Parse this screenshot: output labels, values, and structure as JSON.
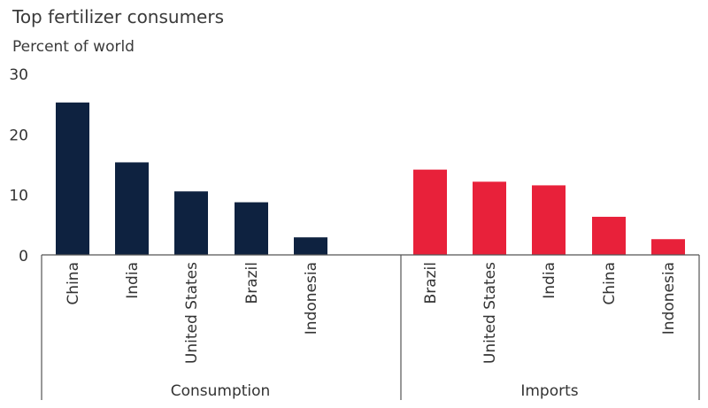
{
  "chart_data": {
    "type": "bar",
    "title": "Top fertilizer consumers",
    "ylabel": "Percent of world",
    "ylim": [
      0,
      30
    ],
    "yticks": [
      0,
      10,
      20,
      30
    ],
    "grid": false,
    "groups": [
      {
        "name": "Consumption",
        "color": "#0e2240",
        "categories": [
          "China",
          "India",
          "United States",
          "Brazil",
          "Indonesia"
        ],
        "values": [
          25.2,
          15.3,
          10.5,
          8.7,
          2.9
        ]
      },
      {
        "name": "Imports",
        "color": "#e8213a",
        "categories": [
          "Brazil",
          "United States",
          "India",
          "China",
          "Indonesia"
        ],
        "values": [
          14.1,
          12.1,
          11.5,
          6.3,
          2.6
        ]
      }
    ]
  }
}
